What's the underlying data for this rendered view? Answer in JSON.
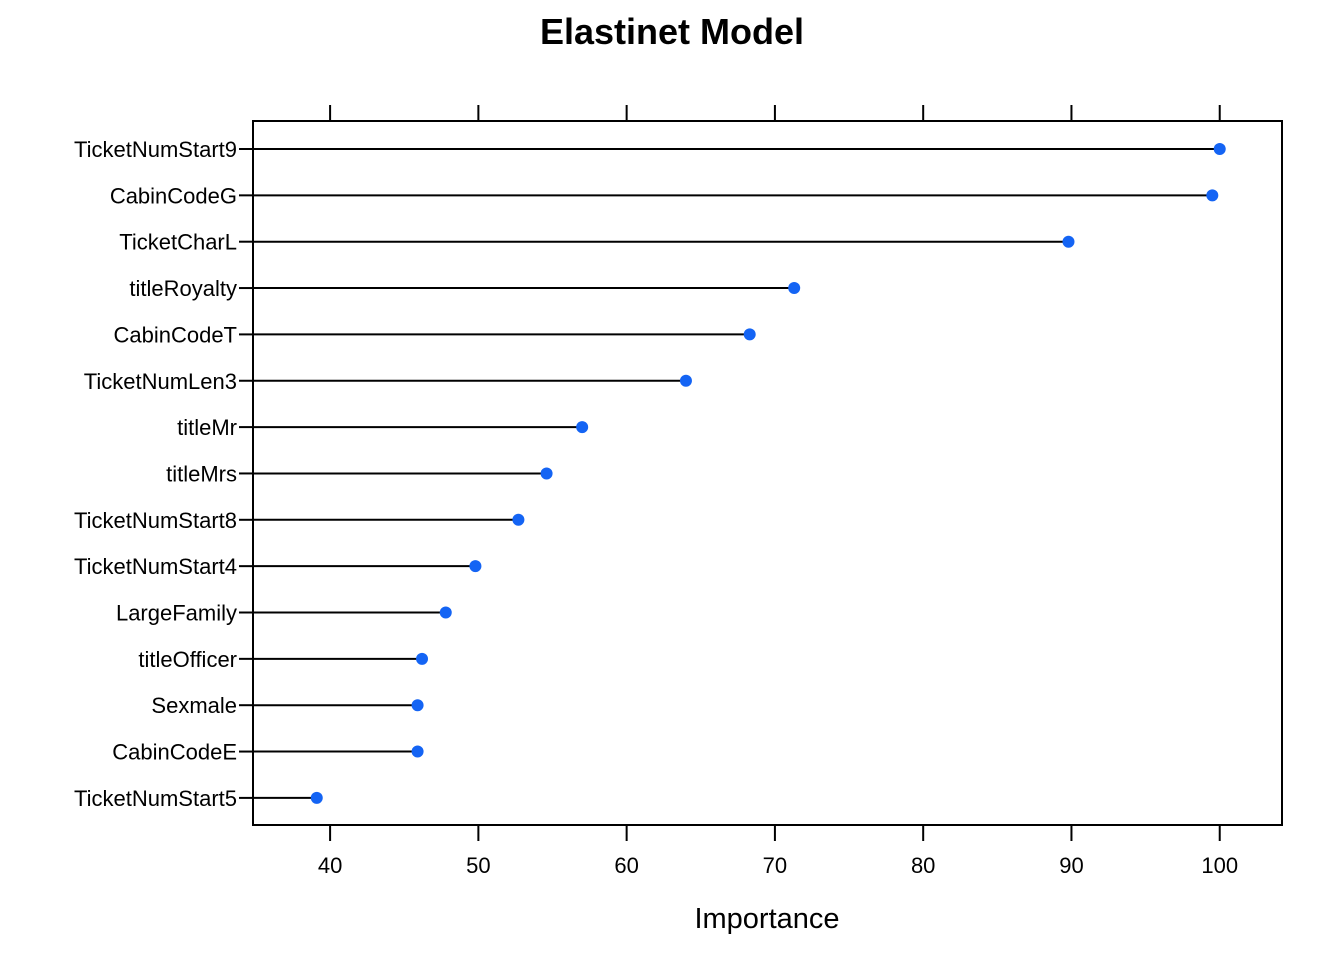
{
  "chart_data": {
    "type": "dot",
    "title": "Elastinet Model",
    "xlabel": "Importance",
    "ylabel": "",
    "xlim": [
      34.8,
      104.2
    ],
    "xticks": [
      40,
      50,
      60,
      70,
      80,
      90,
      100
    ],
    "xtick_labels": [
      "40",
      "50",
      "60",
      "70",
      "80",
      "90",
      "100"
    ],
    "grid": false,
    "legend": "none",
    "point_color": "#1464F4",
    "line_color": "#000000",
    "categories": [
      "TicketNumStart9",
      "CabinCodeG",
      "TicketCharL",
      "titleRoyalty",
      "CabinCodeT",
      "TicketNumLen3",
      "titleMr",
      "titleMrs",
      "TicketNumStart8",
      "TicketNumStart4",
      "LargeFamily",
      "titleOfficer",
      "Sexmale",
      "CabinCodeE",
      "TicketNumStart5"
    ],
    "values": [
      100,
      99.5,
      89.8,
      71.3,
      68.3,
      64.0,
      57.0,
      54.6,
      52.7,
      49.8,
      47.8,
      46.2,
      45.9,
      45.9,
      39.1
    ]
  }
}
